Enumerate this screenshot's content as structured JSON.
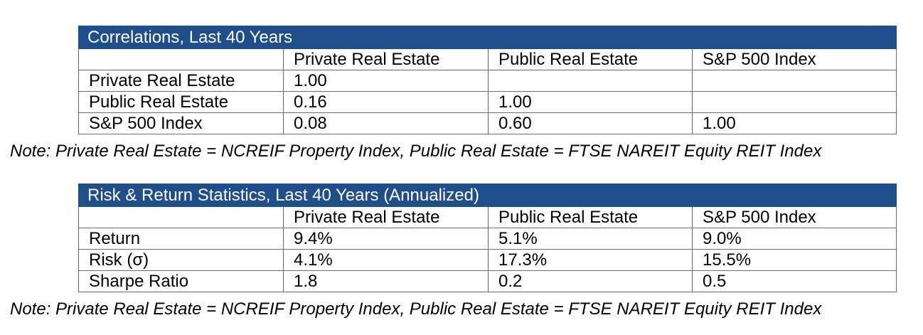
{
  "correlations": {
    "title": "Correlations, Last 40 Years",
    "headers": [
      "",
      "Private Real Estate",
      "Public Real Estate",
      "S&P 500 Index"
    ],
    "rows": [
      [
        "Private Real Estate",
        "1.00",
        "",
        ""
      ],
      [
        "Public Real Estate",
        "0.16",
        "1.00",
        ""
      ],
      [
        "S&P 500 Index",
        "0.08",
        "0.60",
        "1.00"
      ]
    ],
    "note": "Note: Private Real Estate = NCREIF Property Index, Public Real Estate = FTSE NAREIT Equity REIT Index"
  },
  "risk_return": {
    "title": "Risk & Return Statistics, Last 40 Years (Annualized)",
    "headers": [
      "",
      "Private Real Estate",
      "Public Real Estate",
      "S&P 500 Index"
    ],
    "rows": [
      [
        "Return",
        "9.4%",
        "5.1%",
        "9.0%"
      ],
      [
        "Risk (σ)",
        "4.1%",
        "17.3%",
        "15.5%"
      ],
      [
        "Sharpe Ratio",
        "1.8",
        "0.2",
        "0.5"
      ]
    ],
    "note": "Note: Private Real Estate = NCREIF Property Index, Public Real Estate = FTSE NAREIT Equity REIT Index"
  },
  "colors": {
    "header_bg": "#1f4e8c",
    "header_text": "#ffffff",
    "border": "#6b6b6b"
  }
}
